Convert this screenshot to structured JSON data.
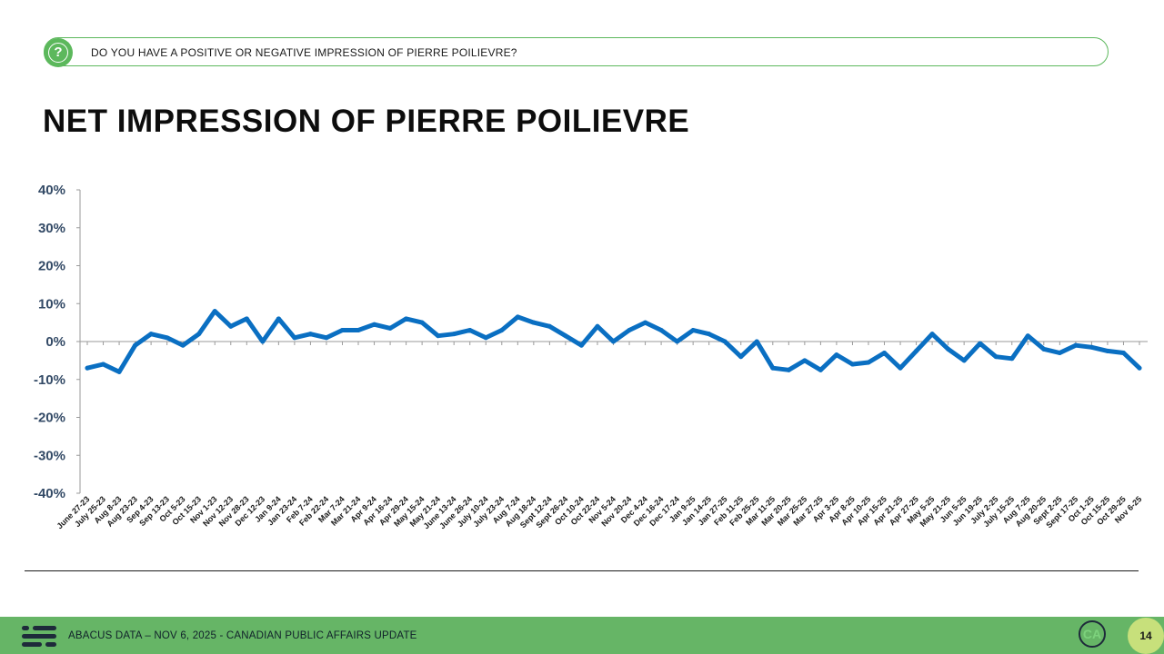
{
  "question": "DO YOU HAVE A POSITIVE OR NEGATIVE IMPRESSION OF PIERRE POILIEVRE?",
  "question_icon": "?",
  "title": "NET IMPRESSION OF PIERRE POILIEVRE",
  "footer": {
    "text": "ABACUS DATA – NOV 6, 2025 - CANADIAN PUBLIC AFFAIRS UPDATE",
    "badge": "CA",
    "page_number": "14"
  },
  "colors": {
    "accent_green": "#66b566",
    "line_blue": "#0a6fc2",
    "axis_text": "#334a66",
    "page_badge": "#c7e07b"
  },
  "chart_data": {
    "type": "line",
    "title": "",
    "xlabel": "",
    "ylabel": "",
    "ylim": [
      -40,
      40
    ],
    "yticks": [
      "40%",
      "30%",
      "20%",
      "10%",
      "0%",
      "-10%",
      "-20%",
      "-30%",
      "-40%"
    ],
    "yticks_values": [
      40,
      30,
      20,
      10,
      0,
      -10,
      -20,
      -30,
      -40
    ],
    "categories": [
      "June 27-23",
      "July 25-23",
      "Aug 8-23",
      "Aug 23-23",
      "Sep 4-23",
      "Sep 13-23",
      "Oct 5-23",
      "Oct 15-23",
      "Nov 1-23",
      "Nov 12-23",
      "Nov 28-23",
      "Dec 12-23",
      "Jan 9-24",
      "Jan 23-24",
      "Feb 7-24",
      "Feb 22-24",
      "Mar 7-24",
      "Mar 21-24",
      "Apr 9-24",
      "Apr 16-24",
      "Apr 29-24",
      "May 15-24",
      "May 21-24",
      "June 13-24",
      "June 26-24",
      "July 10-24",
      "July 23-24",
      "Aug 7-24",
      "Aug 18-24",
      "Sept 12-24",
      "Sept 26-24",
      "Oct 10-24",
      "Oct 22-24",
      "Nov 5-24",
      "Nov 20-24",
      "Dec 4-24",
      "Dec 16-24",
      "Dec 17-24",
      "Jan 9-25",
      "Jan 14-25",
      "Jan 27-25",
      "Feb 11-25",
      "Feb 25-25",
      "Mar 11-25",
      "Mar 20-25",
      "Mar 25-25",
      "Mar 27-25",
      "Apr 3-25",
      "Apr 8-25",
      "Apr 10-25",
      "Apr 15-25",
      "Apr 21-25",
      "Apr 27-25",
      "May 5-25",
      "May 21-25",
      "Jun 5-25",
      "Jun 19-25",
      "July 2-25",
      "July 15-25",
      "Aug 7-25",
      "Aug 20-25",
      "Sept 2-25",
      "Sept 17-25",
      "Oct 1-25",
      "Oct 15-25",
      "Oct 29-25",
      "Nov 6-25"
    ],
    "series": [
      {
        "values": [
          -7,
          -6,
          -8,
          -1,
          2,
          1,
          -1,
          2,
          8,
          4,
          6,
          0,
          6,
          1,
          2,
          1,
          3,
          3,
          4.5,
          3.5,
          6,
          5,
          1.5,
          2,
          3,
          1,
          3,
          6.5,
          5,
          4,
          1.5,
          -1,
          4,
          0,
          3,
          5,
          3,
          0,
          3,
          2,
          0,
          -4,
          0,
          -7,
          -7.5,
          -5,
          -7.5,
          -3.5,
          -6,
          -5.5,
          -3,
          -7,
          -2.5,
          2,
          -2,
          -5,
          -0.5,
          -4,
          -4.5,
          1.5,
          -2,
          -3,
          -1,
          -1.5,
          -2.5,
          -3,
          -7
        ]
      }
    ],
    "grid": false,
    "legend": "none"
  }
}
